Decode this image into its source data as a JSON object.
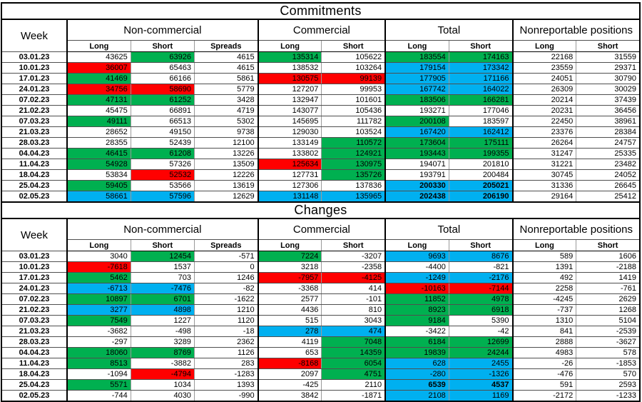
{
  "colors": {
    "green": "#00b050",
    "red": "#ff0000",
    "cyan": "#00b0f0",
    "grid": "#9a9a9a",
    "border": "#000000"
  },
  "chart_data": [
    {
      "type": "table",
      "title": "Commitments",
      "week_header": "Week",
      "groups": [
        {
          "label": "Non-commercial",
          "cols": [
            "Long",
            "Short",
            "Spreads"
          ]
        },
        {
          "label": "Commercial",
          "cols": [
            "Long",
            "Short"
          ]
        },
        {
          "label": "Total",
          "cols": [
            "Long",
            "Short"
          ]
        },
        {
          "label": "Nonreportable positions",
          "cols": [
            "Long",
            "Short"
          ]
        }
      ],
      "rows": [
        {
          "date": "03.01.23",
          "values": [
            43625,
            63926,
            4615,
            135314,
            105622,
            183554,
            174163,
            22168,
            31559
          ],
          "colors": [
            "w",
            "g",
            "w",
            "g",
            "w",
            "g",
            "g",
            "w",
            "w"
          ],
          "bold": []
        },
        {
          "date": "10.01.23",
          "values": [
            36007,
            65463,
            4615,
            138532,
            103264,
            179154,
            173342,
            23559,
            29371
          ],
          "colors": [
            "r",
            "w",
            "w",
            "w",
            "w",
            "c",
            "c",
            "w",
            "w"
          ],
          "bold": []
        },
        {
          "date": "17.01.23",
          "values": [
            41469,
            66166,
            5861,
            130575,
            99139,
            177905,
            171166,
            24051,
            30790
          ],
          "colors": [
            "g",
            "w",
            "w",
            "r",
            "r",
            "c",
            "c",
            "w",
            "w"
          ],
          "bold": []
        },
        {
          "date": "24.01.23",
          "values": [
            34756,
            58690,
            5779,
            127207,
            99953,
            167742,
            164022,
            26309,
            30029
          ],
          "colors": [
            "r",
            "r",
            "w",
            "w",
            "w",
            "c",
            "c",
            "w",
            "w"
          ],
          "bold": []
        },
        {
          "date": "07.02.23",
          "values": [
            47131,
            61252,
            3428,
            132947,
            101601,
            183506,
            166281,
            20214,
            37439
          ],
          "colors": [
            "g",
            "g",
            "w",
            "w",
            "w",
            "g",
            "g",
            "w",
            "w"
          ],
          "bold": []
        },
        {
          "date": "21.02.23",
          "values": [
            45475,
            66891,
            4719,
            143077,
            105436,
            193271,
            177046,
            20231,
            36456
          ],
          "colors": [
            "w",
            "w",
            "w",
            "w",
            "w",
            "w",
            "w",
            "w",
            "w"
          ],
          "bold": []
        },
        {
          "date": "07.03.23",
          "values": [
            49111,
            66513,
            5302,
            145695,
            111782,
            200108,
            183597,
            22450,
            38961
          ],
          "colors": [
            "g",
            "w",
            "w",
            "w",
            "w",
            "g",
            "w",
            "w",
            "w"
          ],
          "bold": []
        },
        {
          "date": "21.03.23",
          "values": [
            28652,
            49150,
            9738,
            129030,
            103524,
            167420,
            162412,
            23376,
            28384
          ],
          "colors": [
            "w",
            "w",
            "w",
            "w",
            "w",
            "c",
            "c",
            "w",
            "w"
          ],
          "bold": []
        },
        {
          "date": "28.03.23",
          "values": [
            28355,
            52439,
            12100,
            133149,
            110572,
            173604,
            175111,
            26264,
            24757
          ],
          "colors": [
            "w",
            "w",
            "w",
            "w",
            "g",
            "g",
            "g",
            "w",
            "w"
          ],
          "bold": []
        },
        {
          "date": "04.04.23",
          "values": [
            46415,
            61208,
            13226,
            133802,
            124921,
            193443,
            199355,
            31247,
            25335
          ],
          "colors": [
            "g",
            "g",
            "w",
            "w",
            "g",
            "g",
            "g",
            "w",
            "w"
          ],
          "bold": []
        },
        {
          "date": "11.04.23",
          "values": [
            54928,
            57326,
            13509,
            125634,
            130975,
            194071,
            201810,
            31221,
            23482
          ],
          "colors": [
            "g",
            "w",
            "w",
            "r",
            "g",
            "w",
            "w",
            "w",
            "w"
          ],
          "bold": []
        },
        {
          "date": "18.04.23",
          "values": [
            53834,
            52532,
            12226,
            127731,
            135726,
            193791,
            200484,
            30745,
            24052
          ],
          "colors": [
            "w",
            "r",
            "w",
            "w",
            "g",
            "w",
            "w",
            "w",
            "w"
          ],
          "bold": []
        },
        {
          "date": "25.04.23",
          "values": [
            59405,
            53566,
            13619,
            127306,
            137836,
            200330,
            205021,
            31336,
            26645
          ],
          "colors": [
            "g",
            "w",
            "w",
            "w",
            "w",
            "c",
            "c",
            "w",
            "w"
          ],
          "bold": [
            5,
            6
          ]
        },
        {
          "date": "02.05.23",
          "values": [
            58661,
            57596,
            12629,
            131148,
            135965,
            202438,
            206190,
            29164,
            25412
          ],
          "colors": [
            "c",
            "c",
            "w",
            "c",
            "c",
            "c",
            "c",
            "w",
            "w"
          ],
          "bold": [
            5,
            6
          ]
        }
      ]
    },
    {
      "type": "table",
      "title": "Changes",
      "week_header": "Week",
      "groups": [
        {
          "label": "Non-commercial",
          "cols": [
            "Long",
            "Short",
            "Spreads"
          ]
        },
        {
          "label": "Commercial",
          "cols": [
            "Long",
            "Short"
          ]
        },
        {
          "label": "Total",
          "cols": [
            "Long",
            "Short"
          ]
        },
        {
          "label": "Nonreportable positions",
          "cols": [
            "Long",
            "Short"
          ]
        }
      ],
      "rows": [
        {
          "date": "03.01.23",
          "values": [
            3040,
            12454,
            -571,
            7224,
            -3207,
            9693,
            8676,
            589,
            1606
          ],
          "colors": [
            "w",
            "g",
            "w",
            "g",
            "w",
            "c",
            "c",
            "w",
            "w"
          ],
          "bold": []
        },
        {
          "date": "10.01.23",
          "values": [
            -7618,
            1537,
            0,
            3218,
            -2358,
            -4400,
            -821,
            1391,
            -2188
          ],
          "colors": [
            "r",
            "w",
            "w",
            "w",
            "w",
            "w",
            "w",
            "w",
            "w"
          ],
          "bold": []
        },
        {
          "date": "17.01.23",
          "values": [
            5462,
            703,
            1246,
            -7957,
            -4125,
            -1249,
            -2176,
            492,
            1419
          ],
          "colors": [
            "g",
            "w",
            "w",
            "r",
            "r",
            "c",
            "c",
            "w",
            "w"
          ],
          "bold": []
        },
        {
          "date": "24.01.23",
          "values": [
            -6713,
            -7476,
            -82,
            -3368,
            414,
            -10163,
            -7144,
            2258,
            -761
          ],
          "colors": [
            "c",
            "c",
            "w",
            "w",
            "w",
            "r",
            "r",
            "w",
            "w"
          ],
          "bold": []
        },
        {
          "date": "07.02.23",
          "values": [
            10897,
            6701,
            -1622,
            2577,
            -101,
            11852,
            4978,
            -4245,
            2629
          ],
          "colors": [
            "g",
            "g",
            "w",
            "w",
            "w",
            "g",
            "g",
            "w",
            "w"
          ],
          "bold": []
        },
        {
          "date": "21.02.23",
          "values": [
            3277,
            4898,
            1210,
            4436,
            810,
            8923,
            6918,
            -737,
            1268
          ],
          "colors": [
            "c",
            "c",
            "w",
            "w",
            "w",
            "g",
            "g",
            "w",
            "w"
          ],
          "bold": []
        },
        {
          "date": "07.03.23",
          "values": [
            7549,
            1227,
            1120,
            515,
            3043,
            9184,
            5390,
            1310,
            5104
          ],
          "colors": [
            "g",
            "w",
            "w",
            "w",
            "w",
            "g",
            "w",
            "w",
            "w"
          ],
          "bold": []
        },
        {
          "date": "21.03.23",
          "values": [
            -3682,
            -498,
            -18,
            278,
            474,
            -3422,
            -42,
            841,
            -2539
          ],
          "colors": [
            "w",
            "w",
            "w",
            "c",
            "c",
            "w",
            "w",
            "w",
            "w"
          ],
          "bold": []
        },
        {
          "date": "28.03.23",
          "values": [
            -297,
            3289,
            2362,
            4119,
            7048,
            6184,
            12699,
            2888,
            -3627
          ],
          "colors": [
            "w",
            "w",
            "w",
            "w",
            "g",
            "g",
            "g",
            "w",
            "w"
          ],
          "bold": []
        },
        {
          "date": "04.04.23",
          "values": [
            18060,
            8769,
            1126,
            653,
            14359,
            19839,
            24244,
            4983,
            578
          ],
          "colors": [
            "g",
            "g",
            "w",
            "w",
            "g",
            "g",
            "g",
            "w",
            "w"
          ],
          "bold": []
        },
        {
          "date": "11.04.23",
          "values": [
            8513,
            -3882,
            283,
            -8168,
            6054,
            628,
            2455,
            -26,
            -1853
          ],
          "colors": [
            "g",
            "w",
            "w",
            "r",
            "g",
            "c",
            "c",
            "w",
            "w"
          ],
          "bold": []
        },
        {
          "date": "18.04.23",
          "values": [
            -1094,
            -4794,
            -1283,
            2097,
            4751,
            -280,
            -1326,
            -476,
            570
          ],
          "colors": [
            "w",
            "r",
            "w",
            "w",
            "g",
            "c",
            "c",
            "w",
            "w"
          ],
          "bold": []
        },
        {
          "date": "25.04.23",
          "values": [
            5571,
            1034,
            1393,
            -425,
            2110,
            6539,
            4537,
            591,
            2593
          ],
          "colors": [
            "g",
            "w",
            "w",
            "w",
            "w",
            "c",
            "c",
            "w",
            "w"
          ],
          "bold": [
            5,
            6
          ]
        },
        {
          "date": "02.05.23",
          "values": [
            -744,
            4030,
            -990,
            3842,
            -1871,
            2108,
            1169,
            -2172,
            -1233
          ],
          "colors": [
            "w",
            "w",
            "w",
            "w",
            "w",
            "c",
            "c",
            "w",
            "w"
          ],
          "bold": []
        }
      ]
    }
  ]
}
